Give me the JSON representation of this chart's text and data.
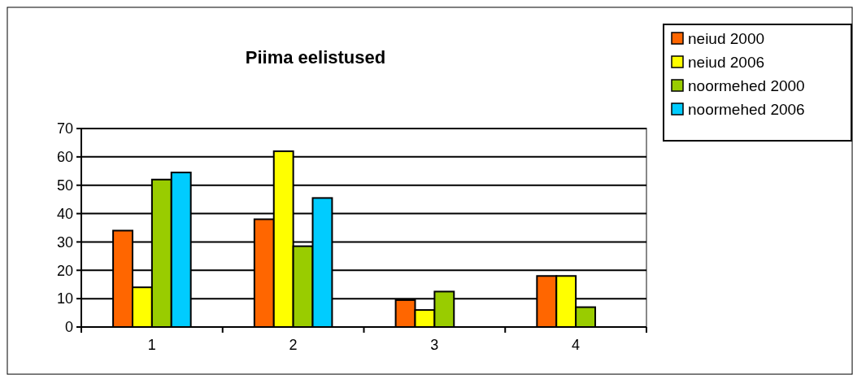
{
  "chart_data": {
    "type": "bar",
    "title": "Piima eelistused",
    "categories": [
      "1",
      "2",
      "3",
      "4"
    ],
    "series": [
      {
        "name": "neiud 2000",
        "color": "#ff6600",
        "values": [
          34,
          38,
          9.5,
          18
        ]
      },
      {
        "name": "neiud 2006",
        "color": "#ffff00",
        "values": [
          14,
          62,
          6,
          18
        ]
      },
      {
        "name": "noormehed 2000",
        "color": "#99cc00",
        "values": [
          52,
          28.5,
          12.5,
          7
        ]
      },
      {
        "name": "noormehed 2006",
        "color": "#00ccff",
        "values": [
          54.5,
          45.5,
          null,
          null
        ]
      }
    ],
    "ylim": [
      0,
      70
    ],
    "yticks": [
      0,
      10,
      20,
      30,
      40,
      50,
      60,
      70
    ],
    "grid": "y",
    "legend": "top right"
  }
}
